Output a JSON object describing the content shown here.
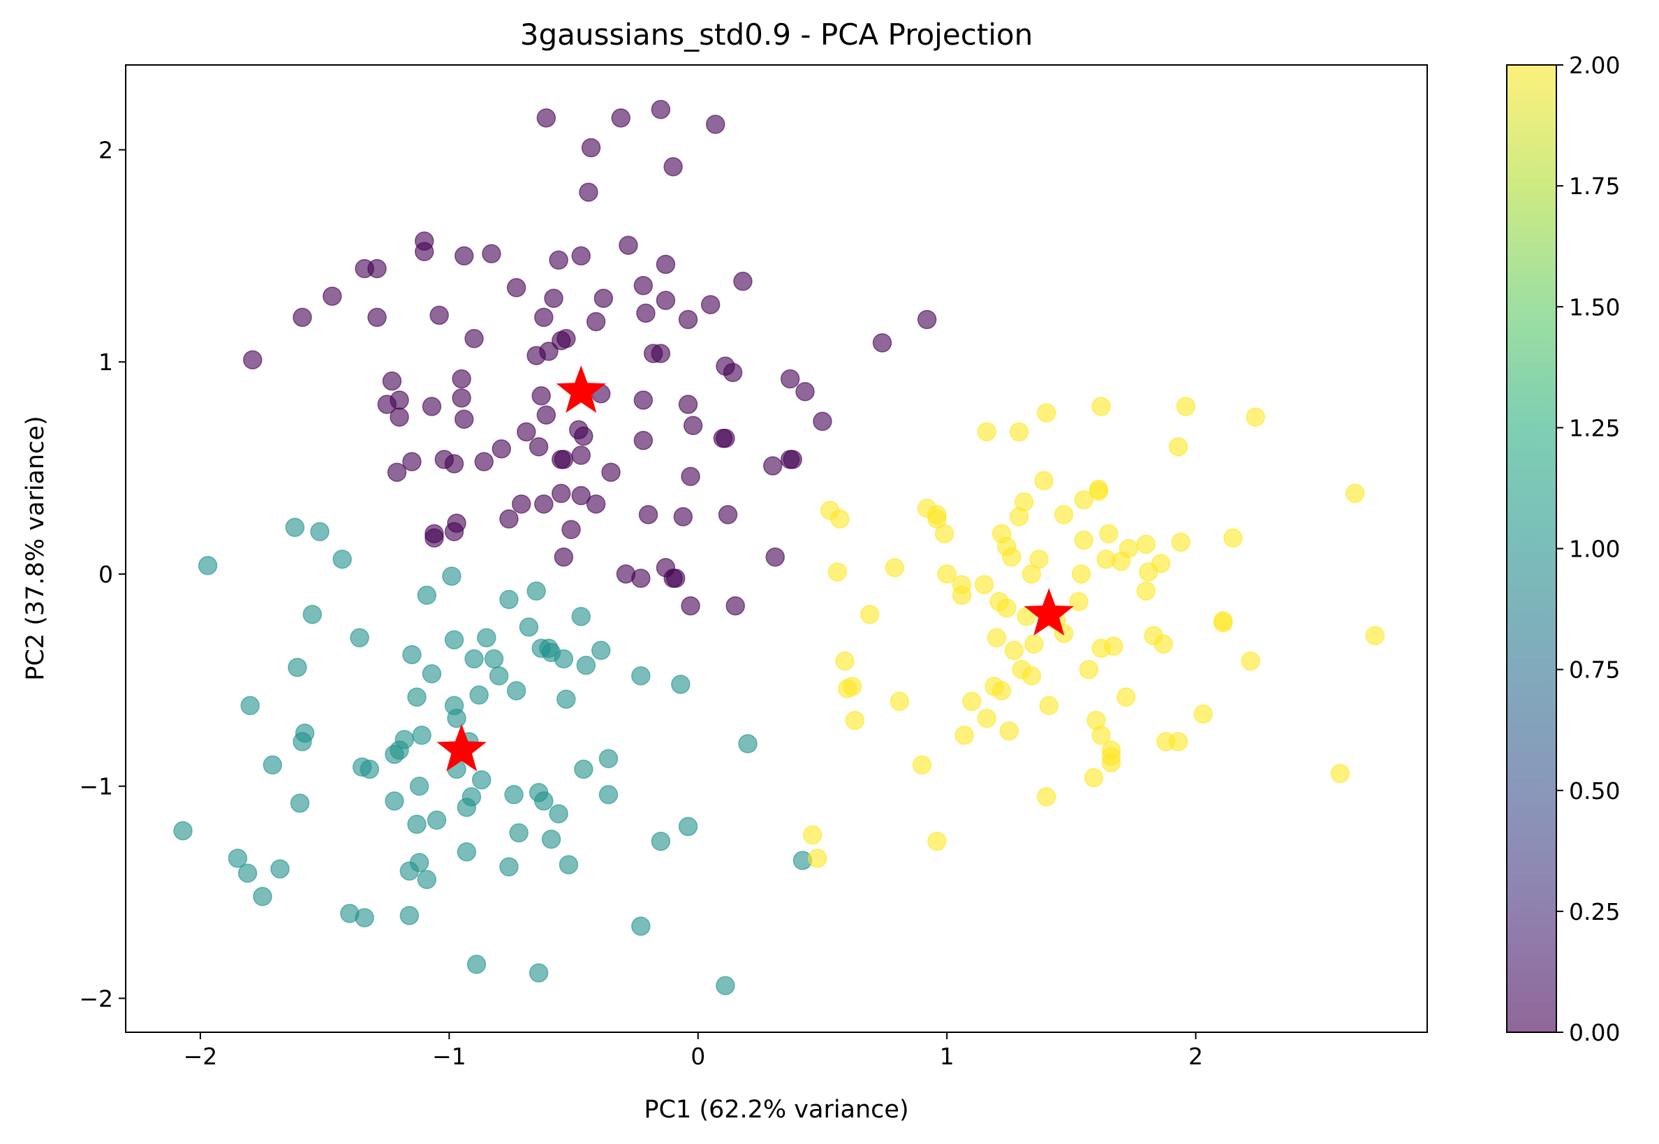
{
  "chart_data": {
    "type": "scatter",
    "title": "3gaussians_std0.9 - PCA Projection",
    "xlabel": "PC1 (62.2% variance)",
    "ylabel": "PC2 (37.8% variance)",
    "xlim": [
      -2.3,
      2.93
    ],
    "ylim": [
      -2.16,
      2.4
    ],
    "xticks": [
      {
        "value": -2,
        "label": "−2"
      },
      {
        "value": -1,
        "label": "−1"
      },
      {
        "value": 0,
        "label": "0"
      },
      {
        "value": 1,
        "label": "1"
      },
      {
        "value": 2,
        "label": "2"
      }
    ],
    "yticks": [
      {
        "value": -2,
        "label": "−2"
      },
      {
        "value": -1,
        "label": "−1"
      },
      {
        "value": 0,
        "label": "0"
      },
      {
        "value": 1,
        "label": "1"
      },
      {
        "value": 2,
        "label": "2"
      }
    ],
    "grid": false,
    "point_alpha": 0.6,
    "colorbar": {
      "range": [
        0,
        2
      ],
      "ticks": [
        {
          "value": 0.0,
          "label": "0.00"
        },
        {
          "value": 0.25,
          "label": "0.25"
        },
        {
          "value": 0.5,
          "label": "0.50"
        },
        {
          "value": 0.75,
          "label": "0.75"
        },
        {
          "value": 1.0,
          "label": "1.00"
        },
        {
          "value": 1.25,
          "label": "1.25"
        },
        {
          "value": 1.5,
          "label": "1.50"
        },
        {
          "value": 1.75,
          "label": "1.75"
        },
        {
          "value": 2.0,
          "label": "2.00"
        }
      ],
      "colormap": "viridis"
    },
    "colors": {
      "cluster_0": "#440154",
      "cluster_1": "#21918c",
      "cluster_2": "#fde725",
      "centroid": "#ff0000"
    },
    "series": [
      {
        "class": 0,
        "points": [
          [
            -0.61,
            2.15
          ],
          [
            -0.31,
            2.15
          ],
          [
            -0.15,
            2.19
          ],
          [
            0.07,
            2.12
          ],
          [
            -0.43,
            2.01
          ],
          [
            -0.1,
            1.92
          ],
          [
            -0.44,
            1.8
          ],
          [
            -1.1,
            1.57
          ],
          [
            -1.1,
            1.52
          ],
          [
            -0.94,
            1.5
          ],
          [
            -0.83,
            1.51
          ],
          [
            -0.28,
            1.55
          ],
          [
            -0.47,
            1.5
          ],
          [
            -0.56,
            1.48
          ],
          [
            -1.34,
            1.44
          ],
          [
            -1.29,
            1.44
          ],
          [
            -0.13,
            1.46
          ],
          [
            -1.47,
            1.31
          ],
          [
            -0.73,
            1.35
          ],
          [
            -0.22,
            1.36
          ],
          [
            -0.13,
            1.29
          ],
          [
            -0.38,
            1.3
          ],
          [
            -0.58,
            1.3
          ],
          [
            0.18,
            1.38
          ],
          [
            -1.59,
            1.21
          ],
          [
            -1.29,
            1.21
          ],
          [
            -1.04,
            1.22
          ],
          [
            -0.21,
            1.23
          ],
          [
            -0.62,
            1.21
          ],
          [
            -0.41,
            1.19
          ],
          [
            -0.04,
            1.2
          ],
          [
            0.05,
            1.27
          ],
          [
            0.92,
            1.2
          ],
          [
            -0.9,
            1.11
          ],
          [
            -0.65,
            1.03
          ],
          [
            -0.55,
            1.1
          ],
          [
            -0.53,
            1.11
          ],
          [
            -0.6,
            1.05
          ],
          [
            -0.18,
            1.04
          ],
          [
            -0.15,
            1.04
          ],
          [
            0.11,
            0.98
          ],
          [
            0.14,
            0.95
          ],
          [
            0.74,
            1.09
          ],
          [
            -1.79,
            1.01
          ],
          [
            -1.23,
            0.91
          ],
          [
            -0.95,
            0.92
          ],
          [
            -1.25,
            0.8
          ],
          [
            -1.2,
            0.82
          ],
          [
            -1.2,
            0.74
          ],
          [
            -1.07,
            0.79
          ],
          [
            -0.95,
            0.83
          ],
          [
            -0.63,
            0.84
          ],
          [
            -0.39,
            0.85
          ],
          [
            -0.22,
            0.82
          ],
          [
            -0.04,
            0.8
          ],
          [
            0.37,
            0.92
          ],
          [
            0.43,
            0.86
          ],
          [
            -0.61,
            0.75
          ],
          [
            -0.48,
            0.68
          ],
          [
            -0.46,
            0.65
          ],
          [
            -0.02,
            0.7
          ],
          [
            0.5,
            0.72
          ],
          [
            -0.94,
            0.73
          ],
          [
            -0.79,
            0.59
          ],
          [
            -0.69,
            0.67
          ],
          [
            -0.64,
            0.6
          ],
          [
            -0.54,
            0.54
          ],
          [
            -0.47,
            0.56
          ],
          [
            -0.22,
            0.63
          ],
          [
            0.1,
            0.64
          ],
          [
            0.11,
            0.64
          ],
          [
            0.37,
            0.54
          ],
          [
            0.38,
            0.54
          ],
          [
            0.3,
            0.51
          ],
          [
            -1.21,
            0.48
          ],
          [
            -1.15,
            0.53
          ],
          [
            -1.02,
            0.54
          ],
          [
            -0.98,
            0.52
          ],
          [
            -0.86,
            0.53
          ],
          [
            -0.55,
            0.54
          ],
          [
            -0.35,
            0.48
          ],
          [
            -0.03,
            0.46
          ],
          [
            -0.55,
            0.38
          ],
          [
            -0.47,
            0.37
          ],
          [
            -0.41,
            0.33
          ],
          [
            -0.62,
            0.33
          ],
          [
            -0.71,
            0.33
          ],
          [
            -0.76,
            0.26
          ],
          [
            -0.2,
            0.28
          ],
          [
            -0.06,
            0.27
          ],
          [
            0.12,
            0.28
          ],
          [
            -1.06,
            0.19
          ],
          [
            -1.06,
            0.17
          ],
          [
            -0.97,
            0.24
          ],
          [
            -0.98,
            0.2
          ],
          [
            -0.51,
            0.21
          ],
          [
            -0.54,
            0.08
          ],
          [
            0.31,
            0.08
          ],
          [
            -0.29,
            0.0
          ],
          [
            -0.23,
            -0.02
          ],
          [
            -0.13,
            0.03
          ],
          [
            -0.1,
            -0.02
          ],
          [
            -0.09,
            -0.02
          ],
          [
            -0.03,
            -0.15
          ],
          [
            0.15,
            -0.15
          ]
        ]
      },
      {
        "class": 1,
        "points": [
          [
            -1.97,
            0.04
          ],
          [
            -1.62,
            0.22
          ],
          [
            -1.52,
            0.2
          ],
          [
            -1.43,
            0.07
          ],
          [
            -0.99,
            -0.01
          ],
          [
            -1.09,
            -0.1
          ],
          [
            -0.65,
            -0.08
          ],
          [
            -0.76,
            -0.12
          ],
          [
            -1.55,
            -0.19
          ],
          [
            -0.47,
            -0.2
          ],
          [
            -1.36,
            -0.3
          ],
          [
            -0.98,
            -0.31
          ],
          [
            -0.85,
            -0.3
          ],
          [
            -0.68,
            -0.25
          ],
          [
            -0.63,
            -0.35
          ],
          [
            -0.59,
            -0.37
          ],
          [
            -0.6,
            -0.35
          ],
          [
            -0.39,
            -0.36
          ],
          [
            -0.54,
            -0.4
          ],
          [
            -0.45,
            -0.43
          ],
          [
            -1.15,
            -0.38
          ],
          [
            -0.9,
            -0.4
          ],
          [
            -0.82,
            -0.4
          ],
          [
            -0.8,
            -0.48
          ],
          [
            -1.07,
            -0.47
          ],
          [
            -1.61,
            -0.44
          ],
          [
            -0.23,
            -0.48
          ],
          [
            -0.07,
            -0.52
          ],
          [
            -0.73,
            -0.55
          ],
          [
            -0.88,
            -0.57
          ],
          [
            -0.53,
            -0.59
          ],
          [
            -1.8,
            -0.62
          ],
          [
            -1.13,
            -0.58
          ],
          [
            -0.98,
            -0.62
          ],
          [
            -0.97,
            -0.68
          ],
          [
            -1.58,
            -0.75
          ],
          [
            -1.59,
            -0.79
          ],
          [
            -1.18,
            -0.78
          ],
          [
            -1.11,
            -0.76
          ],
          [
            -0.92,
            -0.79
          ],
          [
            0.2,
            -0.8
          ],
          [
            -1.2,
            -0.83
          ],
          [
            -1.22,
            -0.85
          ],
          [
            -1.71,
            -0.9
          ],
          [
            -1.35,
            -0.91
          ],
          [
            -1.32,
            -0.92
          ],
          [
            -0.97,
            -0.92
          ],
          [
            -0.46,
            -0.92
          ],
          [
            -0.36,
            -0.87
          ],
          [
            -0.87,
            -0.97
          ],
          [
            -1.12,
            -1.0
          ],
          [
            -0.91,
            -1.05
          ],
          [
            -0.74,
            -1.04
          ],
          [
            -0.64,
            -1.03
          ],
          [
            -0.62,
            -1.07
          ],
          [
            -0.36,
            -1.04
          ],
          [
            -1.6,
            -1.08
          ],
          [
            -1.22,
            -1.07
          ],
          [
            -0.93,
            -1.1
          ],
          [
            -0.56,
            -1.13
          ],
          [
            -1.13,
            -1.18
          ],
          [
            -1.05,
            -1.16
          ],
          [
            -0.04,
            -1.19
          ],
          [
            -2.07,
            -1.21
          ],
          [
            -0.72,
            -1.22
          ],
          [
            -0.59,
            -1.25
          ],
          [
            -0.15,
            -1.26
          ],
          [
            -0.93,
            -1.31
          ],
          [
            -1.85,
            -1.34
          ],
          [
            -1.12,
            -1.36
          ],
          [
            -1.81,
            -1.41
          ],
          [
            -1.68,
            -1.39
          ],
          [
            -1.16,
            -1.4
          ],
          [
            -1.09,
            -1.44
          ],
          [
            -0.76,
            -1.38
          ],
          [
            -0.52,
            -1.37
          ],
          [
            0.42,
            -1.35
          ],
          [
            -1.75,
            -1.52
          ],
          [
            -1.4,
            -1.6
          ],
          [
            -1.34,
            -1.62
          ],
          [
            -1.16,
            -1.61
          ],
          [
            -0.23,
            -1.66
          ],
          [
            -0.89,
            -1.84
          ],
          [
            -0.64,
            -1.88
          ],
          [
            0.11,
            -1.94
          ]
        ]
      },
      {
        "class": 2,
        "points": [
          [
            1.62,
            0.79
          ],
          [
            1.96,
            0.79
          ],
          [
            1.4,
            0.76
          ],
          [
            2.24,
            0.74
          ],
          [
            1.16,
            0.67
          ],
          [
            1.29,
            0.67
          ],
          [
            1.93,
            0.6
          ],
          [
            1.39,
            0.44
          ],
          [
            1.61,
            0.4
          ],
          [
            1.61,
            0.39
          ],
          [
            1.55,
            0.35
          ],
          [
            1.31,
            0.34
          ],
          [
            1.47,
            0.28
          ],
          [
            2.64,
            0.38
          ],
          [
            0.53,
            0.3
          ],
          [
            0.57,
            0.26
          ],
          [
            0.92,
            0.31
          ],
          [
            0.96,
            0.28
          ],
          [
            0.96,
            0.26
          ],
          [
            0.99,
            0.19
          ],
          [
            1.22,
            0.19
          ],
          [
            1.29,
            0.27
          ],
          [
            1.65,
            0.19
          ],
          [
            1.73,
            0.12
          ],
          [
            1.8,
            0.14
          ],
          [
            2.15,
            0.17
          ],
          [
            1.94,
            0.15
          ],
          [
            1.24,
            0.13
          ],
          [
            1.26,
            0.08
          ],
          [
            1.37,
            0.07
          ],
          [
            1.55,
            0.16
          ],
          [
            1.64,
            0.07
          ],
          [
            1.7,
            0.06
          ],
          [
            1.86,
            0.05
          ],
          [
            0.56,
            0.01
          ],
          [
            0.79,
            0.03
          ],
          [
            1.0,
            0.0
          ],
          [
            1.54,
            0.0
          ],
          [
            1.34,
            0.0
          ],
          [
            1.81,
            0.01
          ],
          [
            1.06,
            -0.05
          ],
          [
            1.06,
            -0.1
          ],
          [
            1.15,
            -0.05
          ],
          [
            1.21,
            -0.13
          ],
          [
            1.24,
            -0.16
          ],
          [
            1.53,
            -0.13
          ],
          [
            1.8,
            -0.08
          ],
          [
            1.32,
            -0.2
          ],
          [
            1.44,
            -0.22
          ],
          [
            0.69,
            -0.19
          ],
          [
            2.11,
            -0.22
          ],
          [
            2.11,
            -0.23
          ],
          [
            1.47,
            -0.28
          ],
          [
            1.2,
            -0.3
          ],
          [
            1.27,
            -0.36
          ],
          [
            1.35,
            -0.33
          ],
          [
            1.62,
            -0.35
          ],
          [
            1.67,
            -0.34
          ],
          [
            1.83,
            -0.29
          ],
          [
            1.87,
            -0.33
          ],
          [
            2.72,
            -0.29
          ],
          [
            0.59,
            -0.41
          ],
          [
            2.22,
            -0.41
          ],
          [
            1.3,
            -0.45
          ],
          [
            1.34,
            -0.48
          ],
          [
            1.57,
            -0.45
          ],
          [
            1.19,
            -0.53
          ],
          [
            1.22,
            -0.55
          ],
          [
            0.6,
            -0.54
          ],
          [
            0.62,
            -0.53
          ],
          [
            0.81,
            -0.6
          ],
          [
            1.1,
            -0.6
          ],
          [
            1.41,
            -0.62
          ],
          [
            1.72,
            -0.58
          ],
          [
            0.63,
            -0.69
          ],
          [
            1.16,
            -0.68
          ],
          [
            1.6,
            -0.69
          ],
          [
            1.25,
            -0.74
          ],
          [
            1.07,
            -0.76
          ],
          [
            1.62,
            -0.76
          ],
          [
            1.66,
            -0.83
          ],
          [
            1.66,
            -0.86
          ],
          [
            1.66,
            -0.89
          ],
          [
            1.88,
            -0.79
          ],
          [
            1.93,
            -0.79
          ],
          [
            2.03,
            -0.66
          ],
          [
            0.9,
            -0.9
          ],
          [
            1.59,
            -0.96
          ],
          [
            2.58,
            -0.94
          ],
          [
            1.4,
            -1.05
          ],
          [
            0.46,
            -1.23
          ],
          [
            0.96,
            -1.26
          ],
          [
            0.48,
            -1.34
          ]
        ]
      }
    ],
    "centroids": [
      [
        -0.47,
        0.86
      ],
      [
        -0.95,
        -0.83
      ],
      [
        1.41,
        -0.19
      ]
    ]
  }
}
